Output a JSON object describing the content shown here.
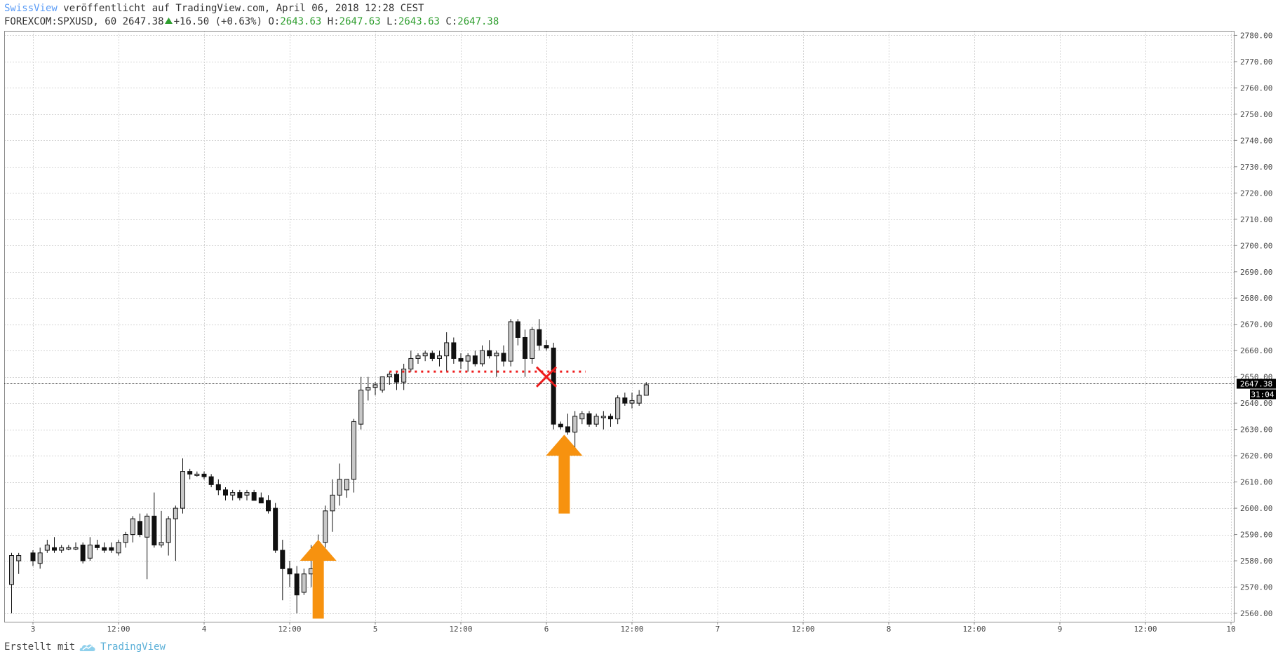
{
  "header": {
    "author": "SwissView",
    "published_text": " veröffentlicht auf TradingView.com, April 06, 2018 12:28 CEST",
    "symbol": "FOREXCOM:SPXUSD, 60",
    "last": "2647.38",
    "change": "+16.50 (+0.63%)",
    "o_label": "O:",
    "o_value": "2643.63",
    "h_label": "H:",
    "h_value": "2647.63",
    "l_label": "L:",
    "l_value": "2643.63",
    "c_label": "C:",
    "c_value": "2647.38"
  },
  "footer": {
    "prefix": "Erstellt mit",
    "brand": "TradingView"
  },
  "price_badge": {
    "price": "2647.38",
    "countdown": "31:04"
  },
  "colors": {
    "up_body": "#c8c8c8",
    "down_body": "#111111",
    "grid": "#d4d4d4",
    "arrow": "#f7920f",
    "dotted": "#ee1c1c",
    "author": "#5b9cf6",
    "positive": "#2e9e2e"
  },
  "chart_data": {
    "type": "candlestick",
    "yticks": [
      2560,
      2570,
      2580,
      2590,
      2600,
      2610,
      2620,
      2630,
      2640,
      2650,
      2660,
      2670,
      2680,
      2690,
      2700,
      2710,
      2720,
      2730,
      2740,
      2750,
      2760,
      2770,
      2780
    ],
    "ytick_labels": [
      "2560.00",
      "2570.00",
      "2580.00",
      "2590.00",
      "2600.00",
      "2610.00",
      "2620.00",
      "2630.00",
      "2640.00",
      "2650.00",
      "2660.00",
      "2670.00",
      "2680.00",
      "2690.00",
      "2700.00",
      "2710.00",
      "2720.00",
      "2730.00",
      "2740.00",
      "2750.00",
      "2760.00",
      "2770.00",
      "2780.00"
    ],
    "ylim": [
      2558,
      2781
    ],
    "xticks": [
      {
        "label": "3",
        "t": 0
      },
      {
        "label": "12:00",
        "t": 12
      },
      {
        "label": "4",
        "t": 24
      },
      {
        "label": "12:00",
        "t": 36
      },
      {
        "label": "5",
        "t": 48
      },
      {
        "label": "12:00",
        "t": 60
      },
      {
        "label": "6",
        "t": 72
      },
      {
        "label": "12:00",
        "t": 84
      },
      {
        "label": "7",
        "t": 96
      },
      {
        "label": "12:00",
        "t": 108
      },
      {
        "label": "8",
        "t": 120
      },
      {
        "label": "12:00",
        "t": 132
      },
      {
        "label": "9",
        "t": 144
      },
      {
        "label": "12:00",
        "t": 156
      },
      {
        "label": "10",
        "t": 168
      }
    ],
    "xlim": [
      -4,
      168
    ],
    "current_price": 2647.38,
    "candles": [
      {
        "t": -3,
        "o": 2571,
        "h": 2583,
        "l": 2560,
        "c": 2582
      },
      {
        "t": -2,
        "o": 2580,
        "h": 2583,
        "l": 2575,
        "c": 2582
      },
      {
        "t": 0,
        "o": 2583,
        "h": 2584,
        "l": 2578,
        "c": 2580
      },
      {
        "t": 1,
        "o": 2579,
        "h": 2585,
        "l": 2577,
        "c": 2583
      },
      {
        "t": 2,
        "o": 2584,
        "h": 2588,
        "l": 2583,
        "c": 2586
      },
      {
        "t": 3,
        "o": 2585,
        "h": 2589,
        "l": 2583,
        "c": 2584
      },
      {
        "t": 4,
        "o": 2584,
        "h": 2586,
        "l": 2583,
        "c": 2585
      },
      {
        "t": 5,
        "o": 2585,
        "h": 2586,
        "l": 2584,
        "c": 2585
      },
      {
        "t": 6,
        "o": 2585,
        "h": 2587,
        "l": 2584,
        "c": 2585
      },
      {
        "t": 7,
        "o": 2586,
        "h": 2587,
        "l": 2579,
        "c": 2580
      },
      {
        "t": 8,
        "o": 2581,
        "h": 2589,
        "l": 2580,
        "c": 2586
      },
      {
        "t": 9,
        "o": 2586,
        "h": 2588,
        "l": 2584,
        "c": 2585
      },
      {
        "t": 10,
        "o": 2585,
        "h": 2587,
        "l": 2583,
        "c": 2584
      },
      {
        "t": 11,
        "o": 2585,
        "h": 2587,
        "l": 2583,
        "c": 2584
      },
      {
        "t": 12,
        "o": 2583,
        "h": 2588,
        "l": 2582,
        "c": 2587
      },
      {
        "t": 13,
        "o": 2587,
        "h": 2591,
        "l": 2585,
        "c": 2590
      },
      {
        "t": 14,
        "o": 2590,
        "h": 2597,
        "l": 2587,
        "c": 2596
      },
      {
        "t": 15,
        "o": 2595,
        "h": 2598,
        "l": 2589,
        "c": 2590
      },
      {
        "t": 16,
        "o": 2589,
        "h": 2598,
        "l": 2573,
        "c": 2597
      },
      {
        "t": 17,
        "o": 2597,
        "h": 2606,
        "l": 2585,
        "c": 2586
      },
      {
        "t": 18,
        "o": 2586,
        "h": 2599,
        "l": 2585,
        "c": 2587
      },
      {
        "t": 19,
        "o": 2587,
        "h": 2597,
        "l": 2582,
        "c": 2596
      },
      {
        "t": 20,
        "o": 2596,
        "h": 2601,
        "l": 2580,
        "c": 2600
      },
      {
        "t": 21,
        "o": 2600,
        "h": 2619,
        "l": 2598,
        "c": 2614
      },
      {
        "t": 22,
        "o": 2614,
        "h": 2615,
        "l": 2611,
        "c": 2613
      },
      {
        "t": 23,
        "o": 2613,
        "h": 2614,
        "l": 2612,
        "c": 2613
      },
      {
        "t": 24,
        "o": 2613,
        "h": 2614,
        "l": 2611,
        "c": 2612
      },
      {
        "t": 25,
        "o": 2612,
        "h": 2613,
        "l": 2608,
        "c": 2609
      },
      {
        "t": 26,
        "o": 2609,
        "h": 2611,
        "l": 2605,
        "c": 2607
      },
      {
        "t": 27,
        "o": 2607,
        "h": 2608,
        "l": 2603,
        "c": 2605
      },
      {
        "t": 28,
        "o": 2605,
        "h": 2607,
        "l": 2603,
        "c": 2606
      },
      {
        "t": 29,
        "o": 2606,
        "h": 2607,
        "l": 2603,
        "c": 2604
      },
      {
        "t": 30,
        "o": 2605,
        "h": 2607,
        "l": 2603,
        "c": 2606
      },
      {
        "t": 31,
        "o": 2606,
        "h": 2607,
        "l": 2603,
        "c": 2603
      },
      {
        "t": 32,
        "o": 2604,
        "h": 2606,
        "l": 2602,
        "c": 2602
      },
      {
        "t": 33,
        "o": 2603,
        "h": 2605,
        "l": 2598,
        "c": 2599
      },
      {
        "t": 34,
        "o": 2600,
        "h": 2602,
        "l": 2583,
        "c": 2584
      },
      {
        "t": 35,
        "o": 2584,
        "h": 2588,
        "l": 2565,
        "c": 2577
      },
      {
        "t": 36,
        "o": 2577,
        "h": 2580,
        "l": 2570,
        "c": 2575
      },
      {
        "t": 37,
        "o": 2575,
        "h": 2578,
        "l": 2560,
        "c": 2567
      },
      {
        "t": 38,
        "o": 2568,
        "h": 2577,
        "l": 2567,
        "c": 2575
      },
      {
        "t": 39,
        "o": 2575,
        "h": 2586,
        "l": 2570,
        "c": 2577
      },
      {
        "t": 40,
        "o": 2578,
        "h": 2590,
        "l": 2572,
        "c": 2587
      },
      {
        "t": 41,
        "o": 2587,
        "h": 2601,
        "l": 2585,
        "c": 2599
      },
      {
        "t": 42,
        "o": 2599,
        "h": 2611,
        "l": 2591,
        "c": 2605
      },
      {
        "t": 43,
        "o": 2605,
        "h": 2617,
        "l": 2601,
        "c": 2611
      },
      {
        "t": 44,
        "o": 2607,
        "h": 2611,
        "l": 2604,
        "c": 2611
      },
      {
        "t": 45,
        "o": 2611,
        "h": 2634,
        "l": 2606,
        "c": 2633
      },
      {
        "t": 46,
        "o": 2632,
        "h": 2650,
        "l": 2630,
        "c": 2645
      },
      {
        "t": 47,
        "o": 2645,
        "h": 2650,
        "l": 2641,
        "c": 2646
      },
      {
        "t": 48,
        "o": 2646,
        "h": 2648,
        "l": 2643,
        "c": 2647
      },
      {
        "t": 49,
        "o": 2645,
        "h": 2650,
        "l": 2644,
        "c": 2650
      },
      {
        "t": 50,
        "o": 2650,
        "h": 2652,
        "l": 2647,
        "c": 2651
      },
      {
        "t": 51,
        "o": 2651,
        "h": 2652,
        "l": 2645,
        "c": 2648
      },
      {
        "t": 52,
        "o": 2648,
        "h": 2655,
        "l": 2645,
        "c": 2653
      },
      {
        "t": 53,
        "o": 2653,
        "h": 2660,
        "l": 2652,
        "c": 2657
      },
      {
        "t": 54,
        "o": 2657,
        "h": 2659,
        "l": 2655,
        "c": 2658
      },
      {
        "t": 55,
        "o": 2658,
        "h": 2660,
        "l": 2656,
        "c": 2659
      },
      {
        "t": 56,
        "o": 2659,
        "h": 2660,
        "l": 2656,
        "c": 2657
      },
      {
        "t": 57,
        "o": 2657,
        "h": 2660,
        "l": 2654,
        "c": 2658
      },
      {
        "t": 58,
        "o": 2658,
        "h": 2667,
        "l": 2652,
        "c": 2663
      },
      {
        "t": 59,
        "o": 2663,
        "h": 2665,
        "l": 2655,
        "c": 2657
      },
      {
        "t": 60,
        "o": 2657,
        "h": 2659,
        "l": 2653,
        "c": 2656
      },
      {
        "t": 61,
        "o": 2656,
        "h": 2659,
        "l": 2652,
        "c": 2658
      },
      {
        "t": 62,
        "o": 2658,
        "h": 2660,
        "l": 2654,
        "c": 2655
      },
      {
        "t": 63,
        "o": 2655,
        "h": 2662,
        "l": 2654,
        "c": 2660
      },
      {
        "t": 64,
        "o": 2660,
        "h": 2664,
        "l": 2657,
        "c": 2658
      },
      {
        "t": 65,
        "o": 2658,
        "h": 2660,
        "l": 2650,
        "c": 2659
      },
      {
        "t": 66,
        "o": 2659,
        "h": 2662,
        "l": 2654,
        "c": 2656
      },
      {
        "t": 67,
        "o": 2656,
        "h": 2672,
        "l": 2654,
        "c": 2671
      },
      {
        "t": 68,
        "o": 2671,
        "h": 2672,
        "l": 2662,
        "c": 2665
      },
      {
        "t": 69,
        "o": 2665,
        "h": 2668,
        "l": 2650,
        "c": 2657
      },
      {
        "t": 70,
        "o": 2657,
        "h": 2669,
        "l": 2655,
        "c": 2668
      },
      {
        "t": 71,
        "o": 2668,
        "h": 2672,
        "l": 2660,
        "c": 2662
      },
      {
        "t": 72,
        "o": 2662,
        "h": 2664,
        "l": 2660,
        "c": 2661
      },
      {
        "t": 73,
        "o": 2661,
        "h": 2663,
        "l": 2630,
        "c": 2632
      },
      {
        "t": 74,
        "o": 2632,
        "h": 2633,
        "l": 2630,
        "c": 2631
      },
      {
        "t": 75,
        "o": 2631,
        "h": 2636,
        "l": 2628,
        "c": 2629
      },
      {
        "t": 76,
        "o": 2629,
        "h": 2637,
        "l": 2623,
        "c": 2635
      },
      {
        "t": 77,
        "o": 2634,
        "h": 2637,
        "l": 2632,
        "c": 2636
      },
      {
        "t": 78,
        "o": 2636,
        "h": 2637,
        "l": 2631,
        "c": 2632
      },
      {
        "t": 79,
        "o": 2632,
        "h": 2636,
        "l": 2631,
        "c": 2635
      },
      {
        "t": 80,
        "o": 2635,
        "h": 2637,
        "l": 2630,
        "c": 2635
      },
      {
        "t": 81,
        "o": 2635,
        "h": 2636,
        "l": 2631,
        "c": 2634
      },
      {
        "t": 82,
        "o": 2634,
        "h": 2643,
        "l": 2632,
        "c": 2642
      },
      {
        "t": 83,
        "o": 2642,
        "h": 2644,
        "l": 2639,
        "c": 2640
      },
      {
        "t": 84,
        "o": 2640,
        "h": 2644,
        "l": 2638,
        "c": 2641
      },
      {
        "t": 85,
        "o": 2640,
        "h": 2645,
        "l": 2639,
        "c": 2643
      },
      {
        "t": 86,
        "o": 2643,
        "h": 2648,
        "l": 2643,
        "c": 2647
      }
    ],
    "annotations": {
      "dotted_line": {
        "t_start": 50,
        "t_end": 77.5,
        "price": 2652
      },
      "cross": {
        "t": 72,
        "price": 2650
      },
      "arrows": [
        {
          "t": 40,
          "base": 2558,
          "tip": 2588
        },
        {
          "t": 74.5,
          "base": 2598,
          "tip": 2628
        }
      ]
    }
  }
}
